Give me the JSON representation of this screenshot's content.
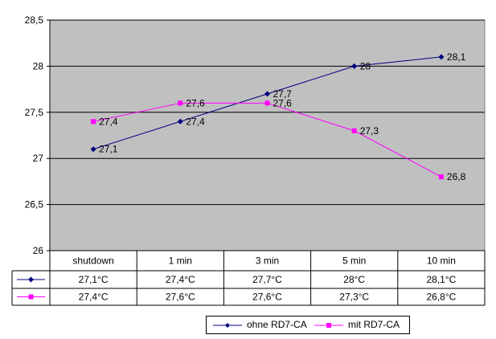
{
  "chart_data": {
    "type": "line",
    "categories": [
      "shutdown",
      "1 min",
      "3 min",
      "5 min",
      "10 min"
    ],
    "ylim": [
      26,
      28.5
    ],
    "yticks": [
      26,
      26.5,
      27,
      27.5,
      28,
      28.5
    ],
    "ytick_labels": [
      "26",
      "26,5",
      "27",
      "27,5",
      "28",
      "28,5"
    ],
    "grid": true,
    "legend_position": "bottom",
    "series": [
      {
        "name": "ohne RD7-CA",
        "values": [
          27.1,
          27.4,
          27.7,
          28.0,
          28.1
        ],
        "point_labels": [
          "27,1",
          "27,4",
          "27,7",
          "28",
          "28,1"
        ],
        "table_values": [
          "27,1°C",
          "27,4°C",
          "27,7°C",
          "28°C",
          "28,1°C"
        ],
        "color": "#000080",
        "marker": "diamond"
      },
      {
        "name": "mit RD7-CA",
        "values": [
          27.4,
          27.6,
          27.6,
          27.3,
          26.8
        ],
        "point_labels": [
          "27,4",
          "27,6",
          "27,6",
          "27,3",
          "26,8"
        ],
        "table_values": [
          "27,4°C",
          "27,6°C",
          "27,6°C",
          "27,3°C",
          "26,8°C"
        ],
        "color": "#ff00ff",
        "marker": "square"
      }
    ],
    "plot_background": "#c0c0c0"
  }
}
